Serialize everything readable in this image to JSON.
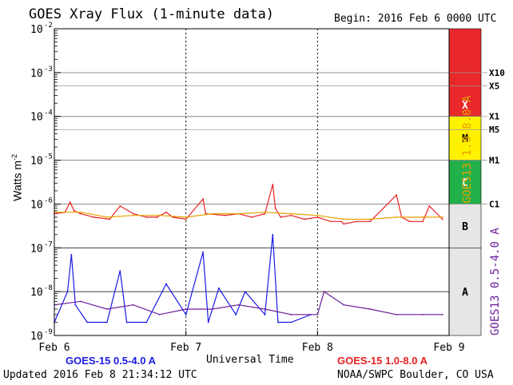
{
  "chart_data": {
    "type": "line",
    "title": "GOES Xray Flux (1-minute data)",
    "begin_label": "Begin:  2016 Feb 6 0000 UTC",
    "xlabel": "Universal Time",
    "ylabel": "Watts m",
    "ylabel_superscript": "-2",
    "y_scale": "log",
    "ylim": [
      1e-09,
      0.01
    ],
    "y_ticks": [
      {
        "base": "10",
        "exp": "-2"
      },
      {
        "base": "10",
        "exp": "-3"
      },
      {
        "base": "10",
        "exp": "-4"
      },
      {
        "base": "10",
        "exp": "-5"
      },
      {
        "base": "10",
        "exp": "-6"
      },
      {
        "base": "10",
        "exp": "-7"
      },
      {
        "base": "10",
        "exp": "-8"
      },
      {
        "base": "10",
        "exp": "-9"
      }
    ],
    "x_ticks": [
      "Feb 6",
      "Feb 7",
      "Feb 8",
      "Feb 9"
    ],
    "xlim_days": [
      0,
      3
    ],
    "grid": true,
    "class_bands": [
      {
        "label": "X",
        "min": 0.0001,
        "max": 0.01,
        "color": "#e8282a"
      },
      {
        "label": "M",
        "min": 1e-05,
        "max": 0.0001,
        "color": "#fff200"
      },
      {
        "label": "C",
        "min": 1e-06,
        "max": 1e-05,
        "color": "#22b04a"
      },
      {
        "label": "B",
        "min": 1e-07,
        "max": 1e-06,
        "color": "#e6e6e6"
      },
      {
        "label": "A",
        "min": 1e-09,
        "max": 1e-07,
        "color": "#e6e6e6"
      }
    ],
    "flare_levels": [
      {
        "label": "X10",
        "value": 0.001
      },
      {
        "label": "X5",
        "value": 0.0005
      },
      {
        "label": "X1",
        "value": 0.0001
      },
      {
        "label": "M5",
        "value": 5e-05
      },
      {
        "label": "M1",
        "value": 1e-05
      },
      {
        "label": "C1",
        "value": 1e-06
      }
    ],
    "right_axis_labels": [
      {
        "text": "GOES13 1.0-8.0 A",
        "color": "#e8a000"
      },
      {
        "text": "GOES13 0.5-4.0 A",
        "color": "#6a1e9a"
      }
    ],
    "legend": [
      {
        "text": "GOES-15 0.5-4.0 A",
        "color": "#1a1ae6",
        "position": "bottom-left"
      },
      {
        "text": "GOES-15 1.0-8.0 A",
        "color": "#e82020",
        "position": "bottom-right"
      }
    ],
    "series": [
      {
        "name": "GOES-15 1.0-8.0 A",
        "color": "#e82020",
        "x_days": [
          0,
          0.08,
          0.12,
          0.15,
          0.2,
          0.3,
          0.42,
          0.5,
          0.6,
          0.7,
          0.78,
          0.85,
          0.9,
          1.0,
          1.13,
          1.15,
          1.3,
          1.4,
          1.5,
          1.6,
          1.66,
          1.68,
          1.72,
          1.8,
          1.9,
          2.0,
          2.1,
          2.18,
          2.2,
          2.3,
          2.4,
          2.6,
          2.64,
          2.7,
          2.8,
          2.85,
          2.95
        ],
        "y": [
          6e-07,
          6.5e-07,
          1.1e-06,
          7e-07,
          6e-07,
          5e-07,
          4.5e-07,
          9e-07,
          6e-07,
          5e-07,
          5e-07,
          6.5e-07,
          5e-07,
          4.5e-07,
          1.3e-06,
          6e-07,
          5.5e-07,
          6e-07,
          5e-07,
          6e-07,
          2.8e-06,
          8e-07,
          5e-07,
          5.5e-07,
          4.5e-07,
          5e-07,
          4e-07,
          4e-07,
          3.5e-07,
          4e-07,
          4e-07,
          1.6e-06,
          5e-07,
          4e-07,
          4e-07,
          9e-07,
          4.5e-07
        ]
      },
      {
        "name": "GOES13 1.0-8.0 A",
        "color": "#e8a000",
        "x_days": [
          0,
          0.2,
          0.4,
          0.6,
          0.8,
          1.0,
          1.2,
          1.4,
          1.6,
          1.8,
          2.0,
          2.2,
          2.4,
          2.6,
          2.8,
          2.95
        ],
        "y": [
          6.5e-07,
          6.5e-07,
          5e-07,
          5.5e-07,
          5.5e-07,
          5e-07,
          6e-07,
          6e-07,
          6.5e-07,
          6e-07,
          5.5e-07,
          4.5e-07,
          4.5e-07,
          5e-07,
          5e-07,
          5e-07
        ]
      },
      {
        "name": "GOES-15 0.5-4.0 A",
        "color": "#1a1ae6",
        "x_days": [
          0,
          0.1,
          0.13,
          0.16,
          0.25,
          0.4,
          0.5,
          0.55,
          0.7,
          0.85,
          1.0,
          1.13,
          1.17,
          1.25,
          1.38,
          1.45,
          1.6,
          1.66,
          1.7,
          1.8,
          1.95
        ],
        "y": [
          2e-09,
          1e-08,
          7e-08,
          5e-09,
          2e-09,
          2e-09,
          3e-08,
          2e-09,
          2e-09,
          1.5e-08,
          3e-09,
          8e-08,
          2e-09,
          1.2e-08,
          3e-09,
          1e-08,
          3e-09,
          2e-07,
          2e-09,
          2e-09,
          3e-09
        ]
      },
      {
        "name": "GOES13 0.5-4.0 A",
        "color": "#6a1e9a",
        "x_days": [
          0,
          0.2,
          0.4,
          0.6,
          0.8,
          1.0,
          1.2,
          1.4,
          1.6,
          1.8,
          2.0,
          2.05,
          2.2,
          2.4,
          2.6,
          2.8,
          2.95
        ],
        "y": [
          5e-09,
          6e-09,
          4e-09,
          5e-09,
          3e-09,
          4e-09,
          4e-09,
          5e-09,
          4e-09,
          3e-09,
          3e-09,
          1e-08,
          5e-09,
          4e-09,
          3e-09,
          3e-09,
          3e-09
        ]
      }
    ]
  },
  "footer": {
    "updated": "Updated 2016 Feb  8 21:34:12 UTC",
    "credit": "NOAA/SWPC Boulder, CO USA"
  }
}
